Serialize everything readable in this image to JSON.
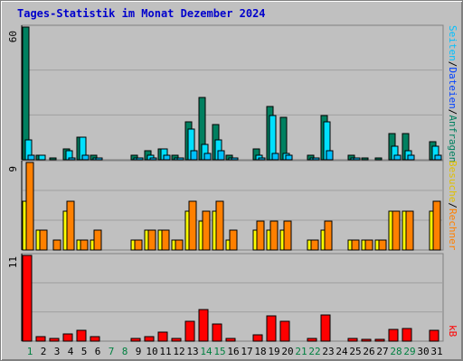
{
  "title": "Tages-Statistik im Monat Dezember 2024",
  "colors": {
    "background": "#c0c0c0",
    "title": "#0000cc",
    "hits": "#008060",
    "files": "#00e0ff",
    "pages": "#00c0ff",
    "visits": "#ffff00",
    "sites": "#ff8000",
    "kbytes": "#ff0000",
    "weekend_label": "#008040",
    "weekday_label": "#000000"
  },
  "legend_top": {
    "hits": "Anfragen",
    "separator": "/",
    "files": "Dateien",
    "pages": "Seiten"
  },
  "legend_mid": {
    "visits": "Besuche",
    "separator": "/",
    "sites": "Rechner"
  },
  "legend_bottom": {
    "kbytes": "kB"
  },
  "chart_data": [
    {
      "type": "bar",
      "panel": "top",
      "max_label": "60",
      "ylim": [
        0,
        60
      ],
      "categories": [
        "1",
        "2",
        "3",
        "4",
        "5",
        "6",
        "7",
        "8",
        "9",
        "10",
        "11",
        "12",
        "13",
        "14",
        "15",
        "16",
        "17",
        "18",
        "19",
        "20",
        "21",
        "22",
        "23",
        "24",
        "25",
        "26",
        "27",
        "28",
        "29",
        "30",
        "31"
      ],
      "weekend": [
        1,
        7,
        8,
        14,
        15,
        21,
        22,
        28,
        29
      ],
      "series": [
        {
          "name": "Anfragen",
          "values": [
            60,
            2,
            1,
            5,
            10,
            2,
            0,
            0,
            2,
            4,
            5,
            2,
            17,
            28,
            16,
            2,
            0,
            5,
            24,
            19,
            0,
            2,
            20,
            0,
            2,
            1,
            1,
            12,
            12,
            0,
            8
          ]
        },
        {
          "name": "Dateien",
          "values": [
            9,
            2,
            0,
            4,
            10,
            1,
            0,
            0,
            1,
            2,
            5,
            1,
            14,
            7,
            9,
            1,
            0,
            2,
            20,
            3,
            0,
            1,
            17,
            0,
            1,
            0,
            0,
            6,
            4,
            0,
            6
          ]
        },
        {
          "name": "Seiten",
          "values": [
            2,
            0,
            0,
            1,
            2,
            1,
            0,
            0,
            1,
            1,
            2,
            1,
            4,
            3,
            4,
            1,
            0,
            1,
            3,
            2,
            0,
            1,
            4,
            0,
            1,
            0,
            0,
            2,
            2,
            0,
            2
          ]
        }
      ]
    },
    {
      "type": "bar",
      "panel": "middle",
      "max_label": "9",
      "ylim": [
        0,
        9
      ],
      "categories": [
        "1",
        "2",
        "3",
        "4",
        "5",
        "6",
        "7",
        "8",
        "9",
        "10",
        "11",
        "12",
        "13",
        "14",
        "15",
        "16",
        "17",
        "18",
        "19",
        "20",
        "21",
        "22",
        "23",
        "24",
        "25",
        "26",
        "27",
        "28",
        "29",
        "30",
        "31"
      ],
      "series": [
        {
          "name": "Besuche",
          "values": [
            5,
            2,
            0,
            4,
            1,
            1,
            0,
            0,
            1,
            2,
            2,
            1,
            4,
            3,
            4,
            1,
            0,
            2,
            2,
            2,
            0,
            1,
            2,
            0,
            1,
            1,
            1,
            4,
            4,
            0,
            4
          ]
        },
        {
          "name": "Rechner",
          "values": [
            9,
            2,
            1,
            5,
            1,
            2,
            0,
            0,
            1,
            2,
            2,
            1,
            5,
            4,
            5,
            2,
            0,
            3,
            3,
            3,
            0,
            1,
            3,
            0,
            1,
            1,
            1,
            4,
            4,
            0,
            5
          ]
        }
      ]
    },
    {
      "type": "bar",
      "panel": "bottom",
      "max_label": "11",
      "ylim": [
        0,
        11
      ],
      "categories": [
        "1",
        "2",
        "3",
        "4",
        "5",
        "6",
        "7",
        "8",
        "9",
        "10",
        "11",
        "12",
        "13",
        "14",
        "15",
        "16",
        "17",
        "18",
        "19",
        "20",
        "21",
        "22",
        "23",
        "24",
        "25",
        "26",
        "27",
        "28",
        "29",
        "30",
        "31"
      ],
      "series": [
        {
          "name": "kB",
          "values": [
            11,
            0.6,
            0.3,
            0.9,
            1.4,
            0.6,
            0,
            0,
            0.4,
            0.6,
            1.2,
            0.4,
            2.5,
            4.0,
            2.2,
            0.4,
            0,
            0.8,
            3.2,
            2.5,
            0,
            0.4,
            3.4,
            0,
            0.4,
            0.2,
            0.2,
            1.5,
            1.6,
            0,
            1.4
          ]
        }
      ]
    }
  ]
}
